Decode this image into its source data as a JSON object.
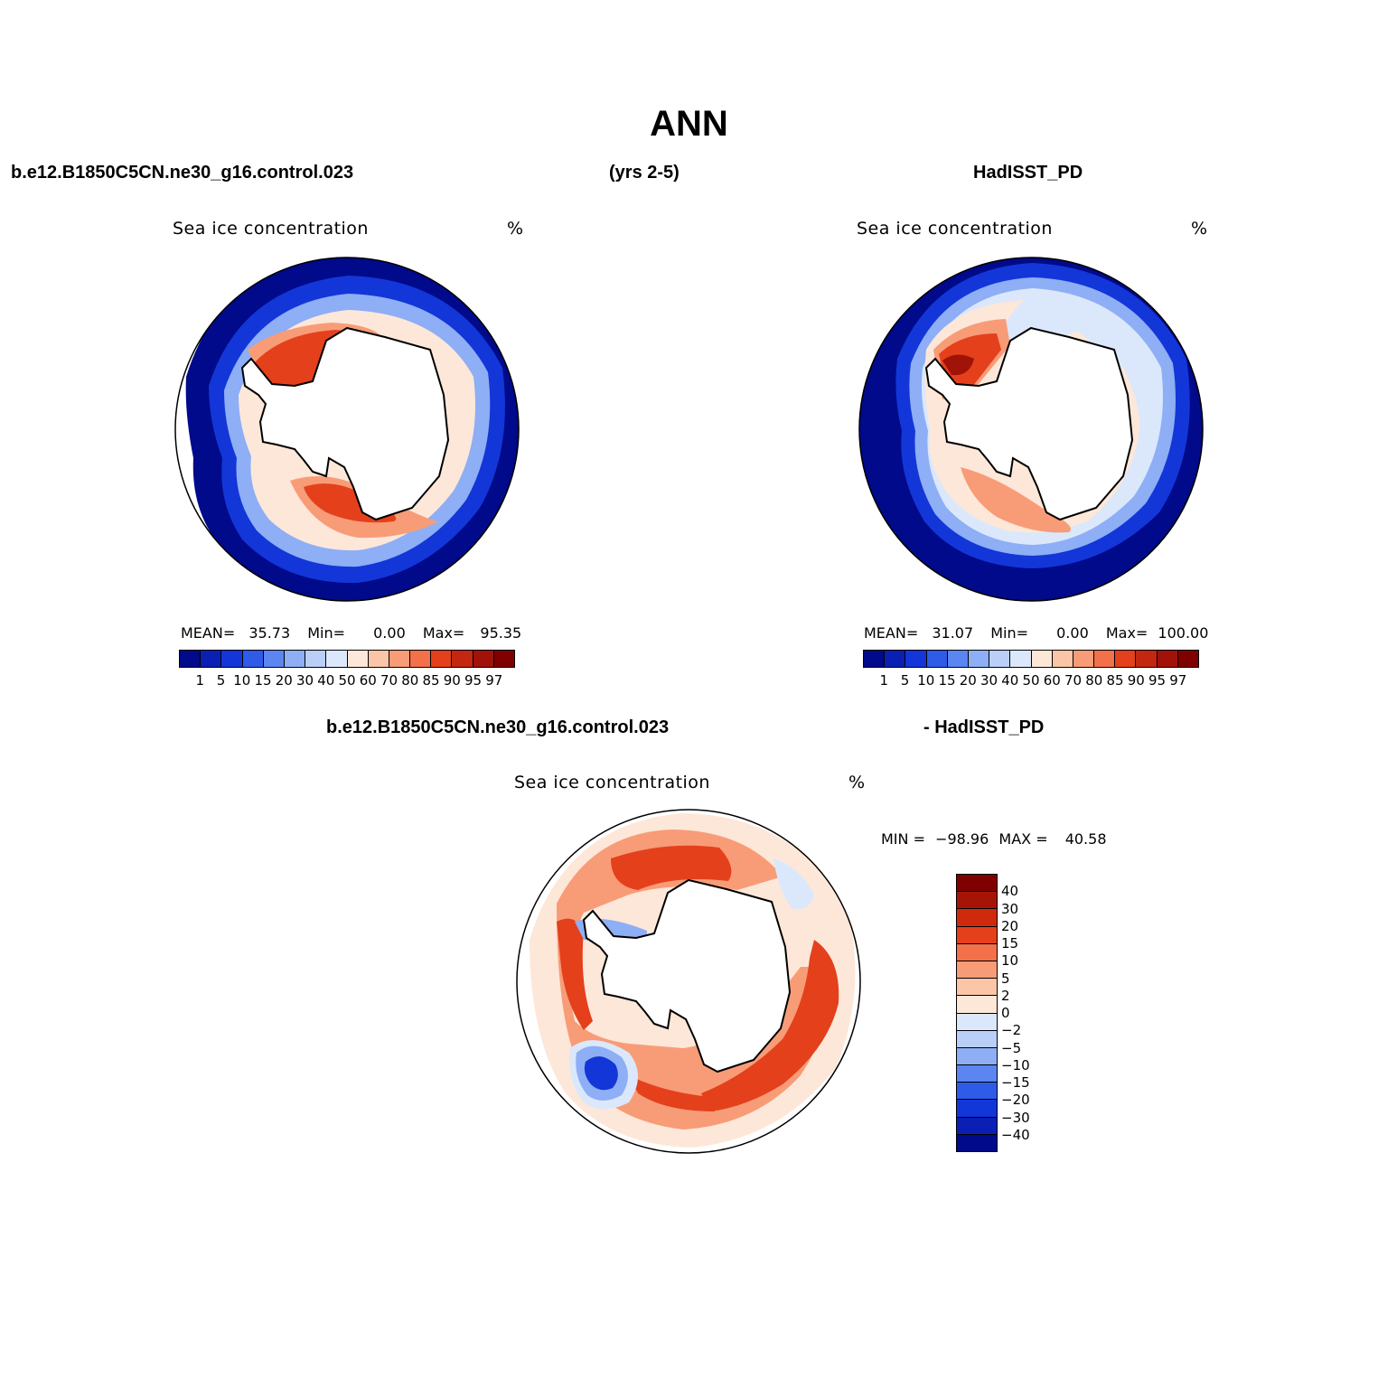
{
  "figure": {
    "title": "ANN",
    "top_left_case": "b.e12.B1850C5CN.ne30_g16.control.023",
    "top_center_years": "(yrs 2-5)",
    "top_right_obs": "HadISST_PD",
    "diff_case": "b.e12.B1850C5CN.ne30_g16.control.023",
    "diff_obs": "- HadISST_PD"
  },
  "panels": [
    {
      "variable": "Sea ice concentration",
      "units": "%",
      "stats": {
        "mean_label": "MEAN=",
        "mean": "35.73",
        "min_label": "Min=",
        "min": "0.00",
        "max_label": "Max=",
        "max": "95.35"
      }
    },
    {
      "variable": "Sea ice concentration",
      "units": "%",
      "stats": {
        "mean_label": "MEAN=",
        "mean": "31.07",
        "min_label": "Min=",
        "min": "0.00",
        "max_label": "Max=",
        "max": "100.00"
      }
    },
    {
      "variable": "Sea ice concentration",
      "units": "%",
      "stats": {
        "min_label": "MIN =",
        "min": "−98.96",
        "max_label": "MAX =",
        "max": "40.58"
      }
    }
  ],
  "colorbar_abs": {
    "ticks": [
      "1",
      "5",
      "10",
      "15",
      "20",
      "30",
      "40",
      "50",
      "60",
      "70",
      "80",
      "85",
      "90",
      "95",
      "97"
    ],
    "colors": [
      "#000a8a",
      "#0a1fb4",
      "#1336d8",
      "#2e5be8",
      "#5b85f0",
      "#8eaef5",
      "#b9cff8",
      "#dbe8fb",
      "#fde7d9",
      "#fbc6a8",
      "#f89c77",
      "#f3704b",
      "#e4401c",
      "#c42710",
      "#a11209",
      "#800000"
    ]
  },
  "colorbar_diff": {
    "ticks": [
      "40",
      "30",
      "20",
      "15",
      "10",
      "5",
      "2",
      "0",
      "−2",
      "−5",
      "−10",
      "−15",
      "−20",
      "−30",
      "−40"
    ],
    "colors": [
      "#800000",
      "#a61408",
      "#d02a0c",
      "#e4401c",
      "#f3704b",
      "#f89c77",
      "#fbc6a8",
      "#fde7d9",
      "#dbe8fb",
      "#b9cff8",
      "#8eaef5",
      "#5b85f0",
      "#2e5be8",
      "#1336d8",
      "#0a1fb4",
      "#000a8a"
    ]
  },
  "map_colors": {
    "deep_blue": "#000a8a",
    "mid_blue": "#1336d8",
    "light_blue": "#8eaef5",
    "pale_blue": "#dbe8fb",
    "pale_red": "#fde7d9",
    "light_red": "#f89c77",
    "red": "#e4401c",
    "dark_red": "#a11209",
    "land": "#ffffff",
    "coast": "#000000"
  }
}
